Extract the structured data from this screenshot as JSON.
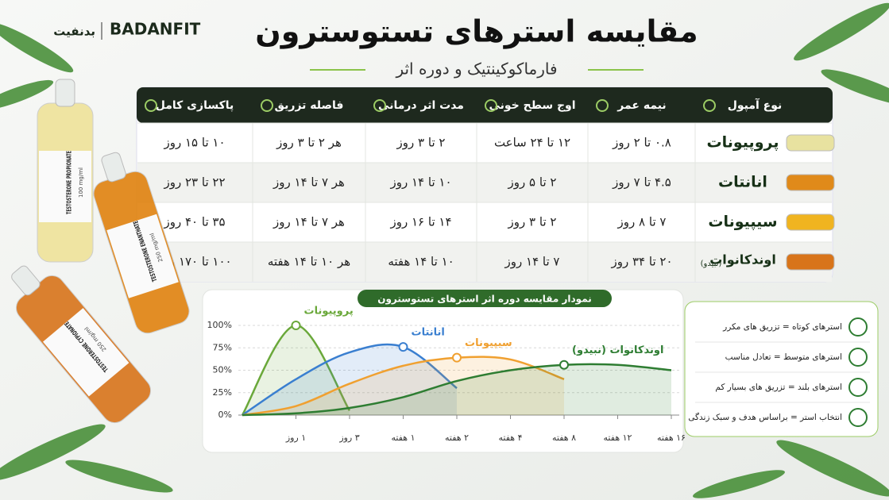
{
  "brand": {
    "latin": "BADANFIT",
    "persian": "بدنفیت"
  },
  "header": {
    "title": "مقایسه استرهای تستوسترون",
    "subtitle": "فارماکوکینتیک و دوره اثر"
  },
  "table": {
    "headers": [
      "نوع آمپول",
      "نیمه عمر",
      "اوج سطح خونی",
      "مدت اثر درمانی",
      "فاصله تزریق",
      "پاکسازی کامل"
    ],
    "rows": [
      {
        "name": "پروپیونات",
        "cells": [
          "۰.۸ تا ۲ روز",
          "۱۲ تا ۲۴ ساعت",
          "۲ تا ۳ روز",
          "هر ۲ تا ۳ روز",
          "۱۰ تا ۱۵ روز"
        ]
      },
      {
        "name": "انانتات",
        "cells": [
          "۴.۵ تا ۷ روز",
          "۲ تا ۵ روز",
          "۱۰ تا ۱۴ روز",
          "هر ۷ تا ۱۴ روز",
          "۲۲ تا ۲۳ روز"
        ]
      },
      {
        "name": "سیپیونات",
        "cells": [
          "۷ تا ۸ روز",
          "۲ تا ۳ روز",
          "۱۴ تا ۱۶ روز",
          "هر ۷ تا ۱۴ روز",
          "۳۵ تا ۴۰ روز"
        ]
      },
      {
        "name": "اوندکانوات",
        "note": "(نبیدو)",
        "cells": [
          "۲۰ تا ۳۴ روز",
          "۷ تا ۱۴ روز",
          "۱۰ تا ۱۴ هفته",
          "هر ۱۰ تا ۱۴ هفته",
          "۱۰۰ تا ۱۷۰ روز"
        ]
      }
    ]
  },
  "chart_data": {
    "type": "line",
    "title": "نمودار مقایسه دوره اثر استرهای تستوسترون",
    "categories": [
      null,
      "۱ روز",
      "۳ روز",
      "۱ هفته",
      "۲ هفته",
      "۴ هفته",
      "۸ هفته",
      "۱۲ هفته",
      "۱۶ هفته"
    ],
    "series": [
      {
        "name": "پروپیونات",
        "color": "#6aa83a",
        "values": [
          0,
          100,
          5,
          null,
          null,
          null,
          null,
          null,
          null
        ]
      },
      {
        "name": "انانتات",
        "color": "#3a7fd0",
        "values": [
          0,
          40,
          70,
          76,
          30,
          null,
          null,
          null,
          null
        ]
      },
      {
        "name": "سیپیونات",
        "color": "#f0a030",
        "values": [
          0,
          10,
          35,
          55,
          64,
          62,
          40,
          null,
          null
        ]
      },
      {
        "name": "اوندکانوات (نبیدو)",
        "color": "#2e7d32",
        "values": [
          0,
          2,
          8,
          20,
          38,
          50,
          56,
          56,
          50
        ]
      }
    ],
    "ylim": [
      0,
      100
    ],
    "yticks": [
      {
        "value": 0,
        "label": "0%"
      },
      {
        "value": 25,
        "label": "25%"
      },
      {
        "value": 50,
        "label": "50%"
      },
      {
        "value": 75,
        "label": "75%"
      },
      {
        "value": 100,
        "label": "100%"
      }
    ],
    "grid": true
  },
  "notes": [
    "استرهای کوتاه = تزریق های مکرر",
    "استرهای متوسط = تعادل مناسب",
    "استرهای بلند = تزریق های بسیار کم",
    "انتخاب استر = براساس هدف و سبک زندگی"
  ],
  "vials": [
    {
      "name": "TESTOSTERONE PROPIONATE",
      "dose": "100 mg/ml"
    },
    {
      "name": "TESTOSTERONE ENANTHATE",
      "dose": "250 mg/ml"
    },
    {
      "name": "TESTOSTERONE CYPIONATE",
      "dose": "250 mg/ml"
    }
  ]
}
